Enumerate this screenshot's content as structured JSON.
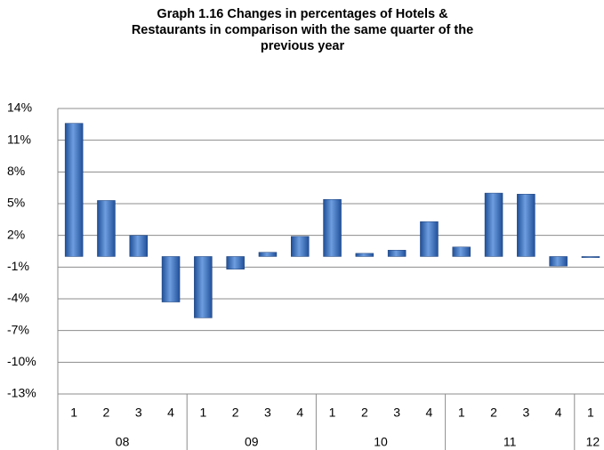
{
  "chart_data": {
    "type": "bar",
    "title": [
      "Graph 1.16 Changes in percentages of Hotels &",
      "Restaurants in comparison with the same  quarter of the",
      "previous year"
    ],
    "groups": [
      {
        "label": "08",
        "categories": [
          "1",
          "2",
          "3",
          "4"
        ]
      },
      {
        "label": "09",
        "categories": [
          "1",
          "2",
          "3",
          "4"
        ]
      },
      {
        "label": "10",
        "categories": [
          "1",
          "2",
          "3",
          "4"
        ]
      },
      {
        "label": "11",
        "categories": [
          "1",
          "2",
          "3",
          "4"
        ]
      },
      {
        "label": "12",
        "categories": [
          "1"
        ]
      }
    ],
    "values": [
      12.6,
      5.3,
      2.0,
      -4.3,
      -5.8,
      -1.2,
      0.4,
      1.9,
      5.4,
      0.3,
      0.6,
      3.3,
      0.9,
      6.0,
      5.9,
      -0.9,
      -0.1
    ],
    "color": "#3a6fc0",
    "ylim": [
      -13,
      14
    ],
    "yticks": [
      {
        "value": 14,
        "label": "14%"
      },
      {
        "value": 11,
        "label": "11%"
      },
      {
        "value": 8,
        "label": "8%"
      },
      {
        "value": 5,
        "label": "5%"
      },
      {
        "value": 2,
        "label": "2%"
      },
      {
        "value": -1,
        "label": "-1%"
      },
      {
        "value": -4,
        "label": "-4%"
      },
      {
        "value": -7,
        "label": "-7%"
      },
      {
        "value": -10,
        "label": "-10%"
      },
      {
        "value": -13,
        "label": "-13%"
      }
    ],
    "grid": true
  }
}
